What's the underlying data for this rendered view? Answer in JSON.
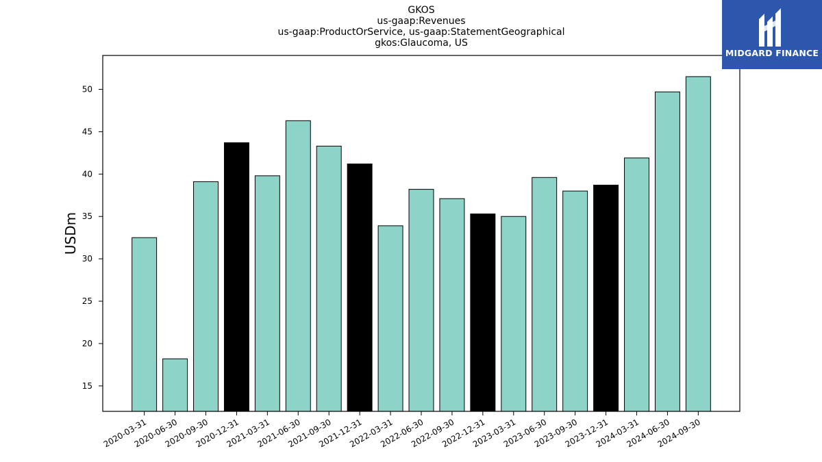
{
  "chart_data": {
    "type": "bar",
    "title": [
      "GKOS",
      "us-gaap:Revenues",
      "us-gaap:ProductOrService, us-gaap:StatementGeographical",
      "gkos:Glaucoma, US"
    ],
    "xlabel": "",
    "ylabel": "USDm",
    "ylim": [
      12,
      54
    ],
    "yticks": [
      15,
      20,
      25,
      30,
      35,
      40,
      45,
      50
    ],
    "categories": [
      "2020-03-31",
      "2020-06-30",
      "2020-09-30",
      "2020-12-31",
      "2021-03-31",
      "2021-06-30",
      "2021-09-30",
      "2021-12-31",
      "2022-03-31",
      "2022-06-30",
      "2022-09-30",
      "2022-12-31",
      "2023-03-31",
      "2023-06-30",
      "2023-09-30",
      "2023-12-31",
      "2024-03-31",
      "2024-06-30",
      "2024-09-30"
    ],
    "values": [
      32.5,
      18.2,
      39.1,
      43.7,
      39.8,
      46.3,
      43.3,
      41.2,
      33.9,
      38.2,
      37.1,
      35.3,
      35.0,
      39.6,
      38.0,
      38.7,
      41.9,
      49.7,
      51.5
    ],
    "bar_colors": [
      "#8dd3c7",
      "#8dd3c7",
      "#8dd3c7",
      "#000000",
      "#8dd3c7",
      "#8dd3c7",
      "#8dd3c7",
      "#000000",
      "#8dd3c7",
      "#8dd3c7",
      "#8dd3c7",
      "#000000",
      "#8dd3c7",
      "#8dd3c7",
      "#8dd3c7",
      "#000000",
      "#8dd3c7",
      "#8dd3c7",
      "#8dd3c7"
    ],
    "grid": false,
    "legend": "none"
  },
  "logo": {
    "text": "MIDGARD FINANCE"
  }
}
